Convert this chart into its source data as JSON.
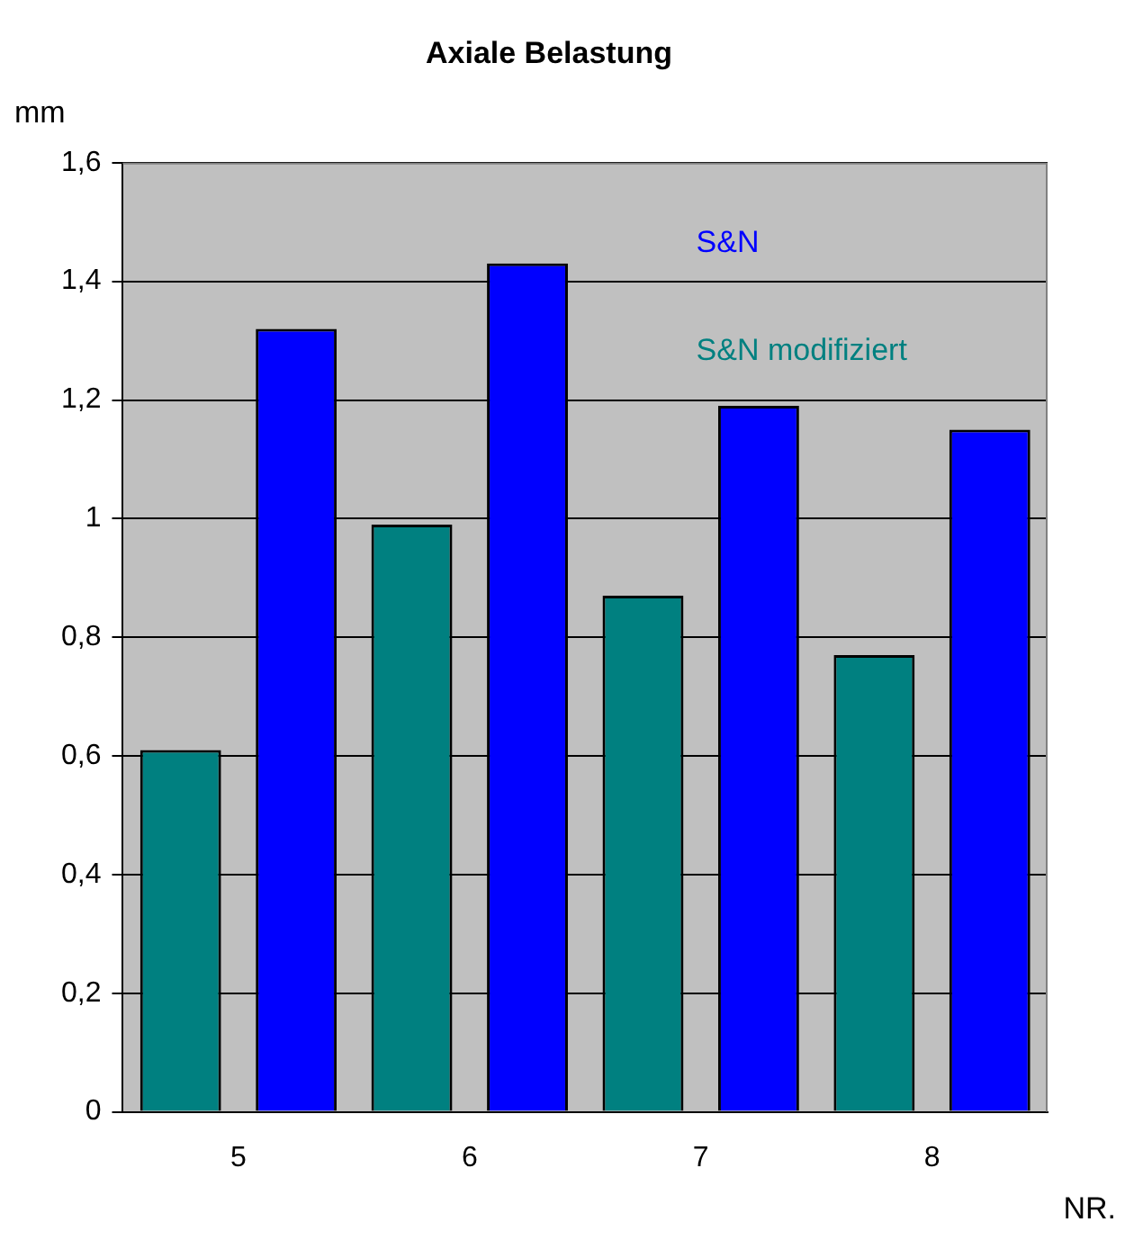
{
  "chart_data": {
    "type": "bar",
    "title": "Axiale Belastung",
    "xlabel": "NR.",
    "ylabel": "mm",
    "categories": [
      "5",
      "6",
      "7",
      "8"
    ],
    "series": [
      {
        "name": "S&N modifiziert",
        "color": "#008080",
        "values": [
          0.61,
          0.99,
          0.87,
          0.77
        ]
      },
      {
        "name": "S&N",
        "color": "#0000ff",
        "values": [
          1.32,
          1.43,
          1.19,
          1.15
        ]
      }
    ],
    "ylim": [
      0,
      1.6
    ],
    "yticks": [
      {
        "value": 0,
        "label": "0"
      },
      {
        "value": 0.2,
        "label": "0,2"
      },
      {
        "value": 0.4,
        "label": "0,4"
      },
      {
        "value": 0.6,
        "label": "0,6"
      },
      {
        "value": 0.8,
        "label": "0,8"
      },
      {
        "value": 1,
        "label": "1"
      },
      {
        "value": 1.2,
        "label": "1,2"
      },
      {
        "value": 1.4,
        "label": "1,4"
      },
      {
        "value": 1.6,
        "label": "1,6"
      }
    ],
    "grid": "y",
    "legend": "top right"
  }
}
